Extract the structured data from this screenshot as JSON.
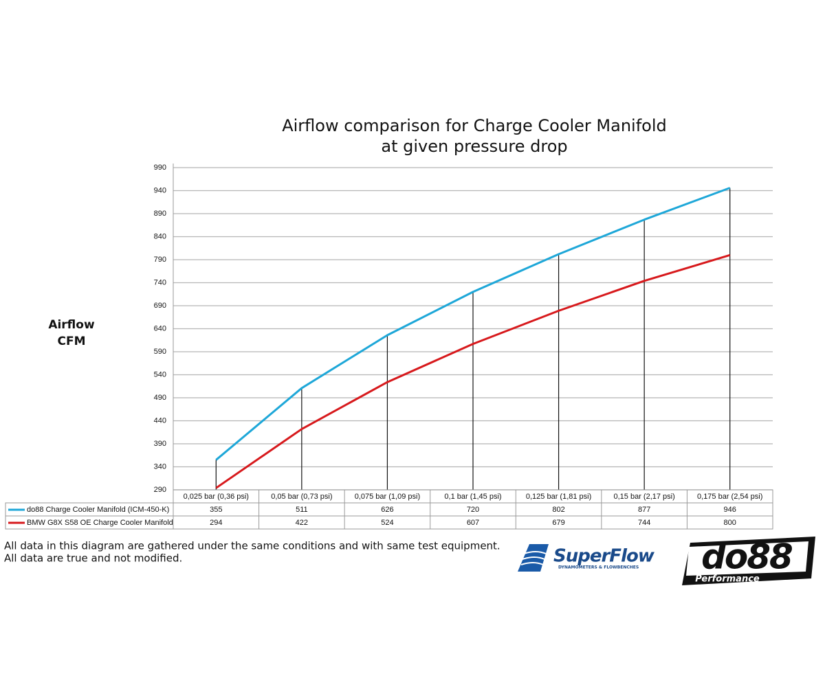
{
  "chart_data": {
    "type": "line",
    "title_lines": [
      "Airflow comparison for Charge Cooler Manifold",
      "at given pressure drop"
    ],
    "y_label_lines": [
      "Airflow",
      "CFM"
    ],
    "categories": [
      "0,025 bar (0,36 psi)",
      "0,05 bar (0,73 psi)",
      "0,075 bar (1,09 psi)",
      "0,1 bar (1,45 psi)",
      "0,125 bar (1,81 psi)",
      "0,15 bar (2,17 psi)",
      "0,175 bar (2,54 psi)"
    ],
    "series": [
      {
        "name": "do88 Charge Cooler Manifold (ICM-450-K)",
        "color": "#1ea7d8",
        "values": [
          355,
          511,
          626,
          720,
          802,
          877,
          946
        ]
      },
      {
        "name": "BMW G8X S58 OE Charge Cooler Manifold",
        "color": "#d7191c",
        "values": [
          294,
          422,
          524,
          607,
          679,
          744,
          800
        ]
      }
    ],
    "ylim": [
      290,
      990
    ],
    "yticks": [
      290,
      340,
      390,
      440,
      490,
      540,
      590,
      640,
      690,
      740,
      790,
      840,
      890,
      940,
      990
    ],
    "grid": true,
    "drop_lines": true,
    "data_table": true
  },
  "footnotes": [
    "All data in this diagram are gathered under the same conditions and with same test equipment.",
    "All data are true and not modified."
  ],
  "logos": {
    "superflow": "SuperFlow",
    "superflow_tagline": "DYNAMOMETERS & FLOWBENCHES",
    "do88": "do88",
    "do88_tagline": "Performance"
  }
}
